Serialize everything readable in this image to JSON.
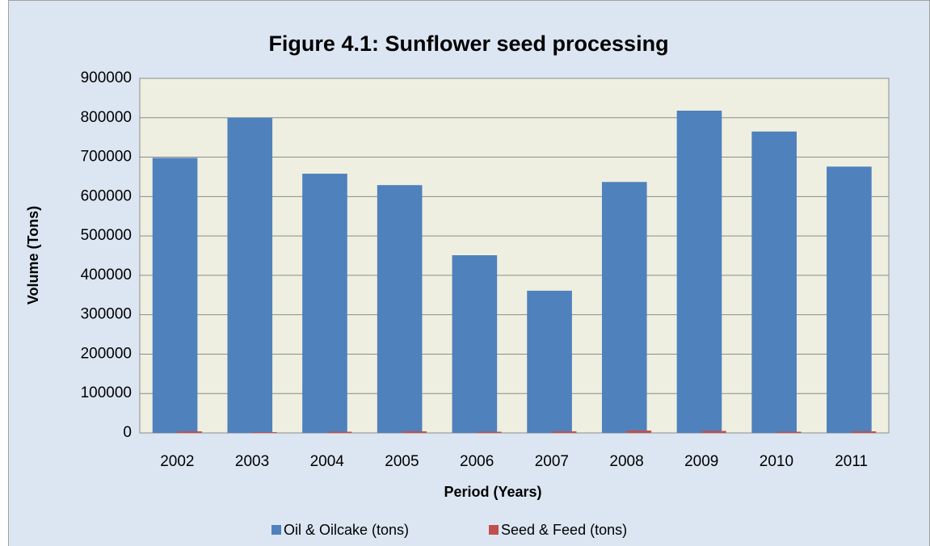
{
  "chart_data": {
    "type": "bar",
    "title": "Figure 4.1: Sunflower seed processing",
    "x_label": "Period (Years)",
    "y_label": "Volume (Tons)",
    "categories": [
      "2002",
      "2003",
      "2004",
      "2005",
      "2006",
      "2007",
      "2008",
      "2009",
      "2010",
      "2011"
    ],
    "series": [
      {
        "name": "Oil & Oilcake (tons)",
        "color": "#4f81bd",
        "values": [
          698000,
          800000,
          658000,
          629000,
          451000,
          361000,
          637000,
          818000,
          765000,
          676000
        ]
      },
      {
        "name": "Seed & Feed (tons)",
        "color": "#c0504d",
        "values": [
          4000,
          2000,
          3000,
          4000,
          3000,
          4000,
          6000,
          5000,
          3000,
          4000
        ]
      }
    ],
    "ylim": [
      0,
      900000
    ],
    "yticks": [
      0,
      100000,
      200000,
      300000,
      400000,
      500000,
      600000,
      700000,
      800000,
      900000
    ],
    "grid": true,
    "legend": "bottom"
  }
}
